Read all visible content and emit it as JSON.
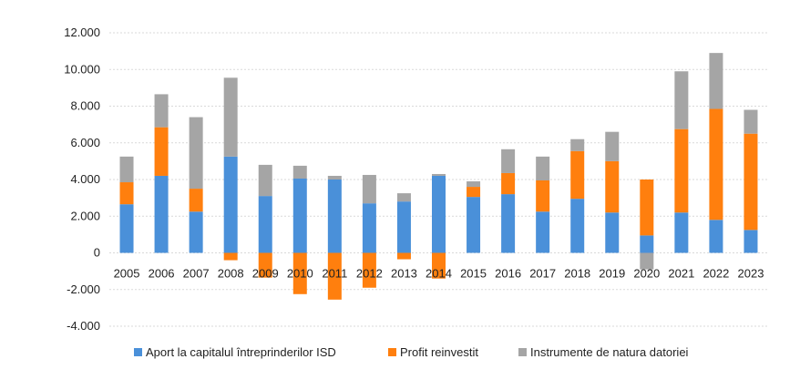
{
  "chart_data": {
    "type": "bar",
    "stacked": true,
    "categories": [
      "2005",
      "2006",
      "2007",
      "2008",
      "2009",
      "2010",
      "2011",
      "2012",
      "2013",
      "2014",
      "2015",
      "2016",
      "2017",
      "2018",
      "2019",
      "2020",
      "2021",
      "2022",
      "2023"
    ],
    "series": [
      {
        "name": "Aport la capitalul întreprinderilor ISD",
        "color": "#4a90d9",
        "values": [
          2650,
          4200,
          2250,
          5250,
          3100,
          4050,
          4000,
          2700,
          2800,
          4200,
          3050,
          3200,
          2250,
          2950,
          2200,
          950,
          2200,
          1800,
          1250
        ]
      },
      {
        "name": "Profit reinvestit",
        "color": "#ff7f0e",
        "values": [
          1200,
          2650,
          1250,
          -400,
          -1350,
          -2250,
          -2550,
          -1900,
          -350,
          -1400,
          550,
          1150,
          1700,
          2600,
          2800,
          3050,
          4550,
          6050,
          5250
        ]
      },
      {
        "name": "Instrumente de natura datoriei",
        "color": "#a5a5a5",
        "values": [
          1400,
          1800,
          3900,
          4300,
          1700,
          700,
          200,
          1550,
          450,
          100,
          300,
          1300,
          1300,
          650,
          1600,
          -900,
          3150,
          3050,
          1300
        ]
      }
    ],
    "yticks": [
      "12.000",
      "10.000",
      "8.000",
      "6.000",
      "4.000",
      "2.000",
      "0",
      "-2.000",
      "-4.000"
    ],
    "ylim": [
      -4000,
      12000
    ],
    "grid": true,
    "legend": "bottom"
  }
}
